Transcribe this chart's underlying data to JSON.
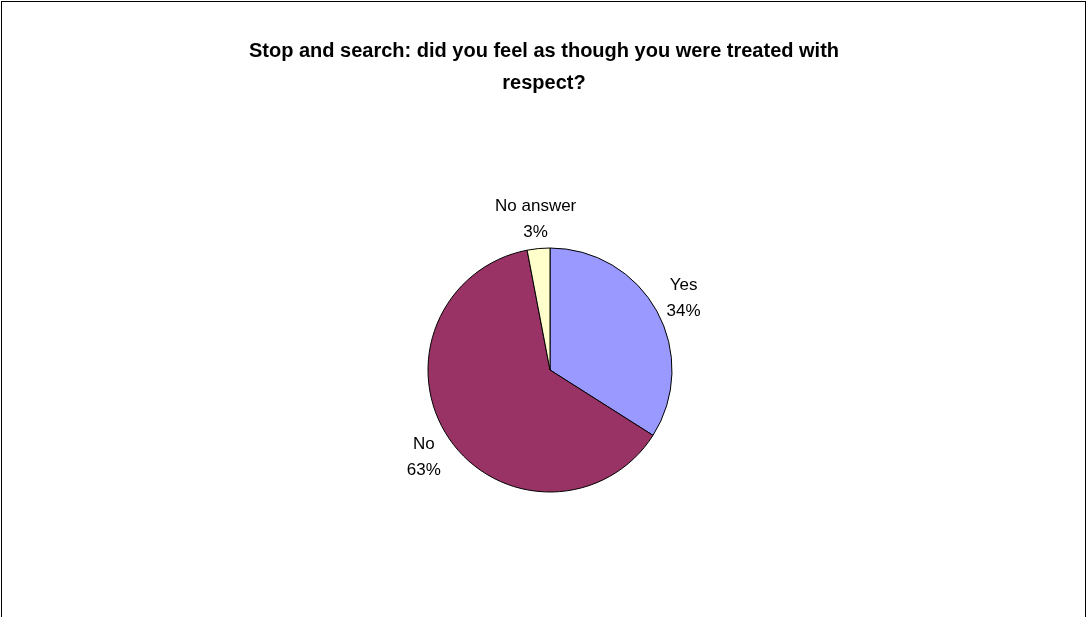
{
  "chart_data": {
    "type": "pie",
    "title": "Stop and search: did you feel as though you were treated with respect?",
    "categories": [
      "Yes",
      "No",
      "No answer"
    ],
    "values": [
      34,
      63,
      3
    ],
    "colors": [
      "#9999ff",
      "#993366",
      "#ffffcc"
    ],
    "value_labels": [
      "34%",
      "63%",
      "3%"
    ]
  }
}
